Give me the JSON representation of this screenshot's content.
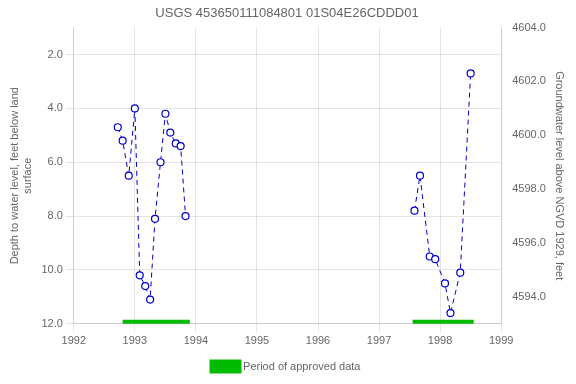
{
  "chart_data": {
    "type": "line",
    "title": "USGS 453650111084801 01S04E26CDDD01",
    "ylabel": "Depth to water level, feet below land\nsurface",
    "y2label": "Groundwater level above NGVD 1929, feet",
    "xlim": [
      1992,
      1999
    ],
    "xticks": [
      1992,
      1993,
      1994,
      1995,
      1996,
      1997,
      1998,
      1999
    ],
    "ylim": [
      12.0,
      1.0
    ],
    "yticks": [
      {
        "value": 2.0,
        "label": "2.0"
      },
      {
        "value": 4.0,
        "label": "4.0"
      },
      {
        "value": 6.0,
        "label": "6.0"
      },
      {
        "value": 8.0,
        "label": "8.0"
      },
      {
        "value": 10.0,
        "label": "10.0"
      },
      {
        "value": 12.0,
        "label": "12.0"
      }
    ],
    "y2lim": [
      4593.0,
      4604.0
    ],
    "y2ticks": [
      {
        "value": 4594.0,
        "label": "4594.0"
      },
      {
        "value": 4596.0,
        "label": "4596.0"
      },
      {
        "value": 4598.0,
        "label": "4598.0"
      },
      {
        "value": 4600.0,
        "label": "4600.0"
      },
      {
        "value": 4602.0,
        "label": "4602.0"
      },
      {
        "value": 4604.0,
        "label": "4604.0"
      }
    ],
    "grid": true,
    "legend": "bottom",
    "series": [
      {
        "color": "#0000cc",
        "marker": "circle",
        "line_style": "dashed",
        "x": [
          1992.72,
          1992.8,
          1992.9,
          1993.0,
          1993.08,
          1993.17,
          1993.25,
          1993.33,
          1993.42,
          1993.5,
          1993.58,
          1993.67,
          1993.75,
          1993.83
        ],
        "values": [
          4.7,
          5.2,
          6.5,
          4.0,
          10.2,
          10.6,
          11.1,
          8.1,
          6.0,
          4.2,
          4.9,
          5.3,
          5.4,
          8.0
        ]
      },
      {
        "color": "#0000cc",
        "marker": "circle",
        "line_style": "dashed",
        "x": [
          1997.58,
          1997.67,
          1997.83,
          1997.92,
          1998.08,
          1998.17,
          1998.33,
          1998.5
        ],
        "values": [
          7.8,
          6.5,
          9.5,
          9.6,
          10.5,
          11.6,
          10.1,
          2.7
        ]
      },
      {
        "name": "Period of approved data",
        "type": "bar",
        "orientation": "horizontal",
        "color": "#00bb00",
        "y": 12.0,
        "values": [
          [
            1992.8,
            1993.9
          ],
          [
            1997.55,
            1998.55
          ]
        ]
      }
    ]
  }
}
